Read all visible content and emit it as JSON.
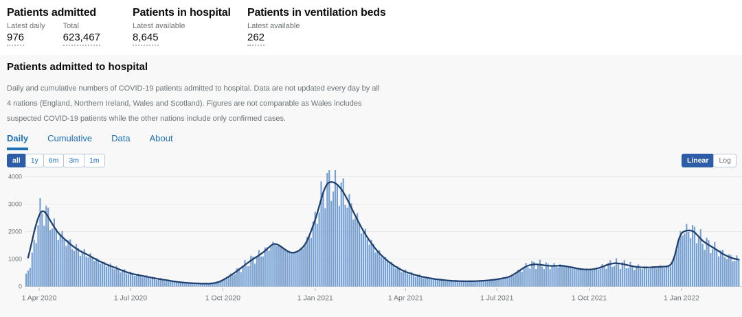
{
  "stats": [
    {
      "title": "Patients admitted",
      "metrics": [
        {
          "label": "Latest daily",
          "value": "976"
        },
        {
          "label": "Total",
          "value": "623,467"
        }
      ]
    },
    {
      "title": "Patients in hospital",
      "metrics": [
        {
          "label": "Latest available",
          "value": "8,645"
        }
      ]
    },
    {
      "title": "Patients in ventilation beds",
      "metrics": [
        {
          "label": "Latest available",
          "value": "262"
        }
      ]
    }
  ],
  "card": {
    "title": "Patients admitted to hospital",
    "description": "Daily and cumulative numbers of COVID-19 patients admitted to hospital. Data are not updated every day by all 4 nations (England, Northern Ireland, Wales and Scotland). Figures are not comparable as Wales includes suspected COVID-19 patients while the other nations include only confirmed cases.",
    "tabs": [
      {
        "label": "Daily",
        "active": true
      },
      {
        "label": "Cumulative",
        "active": false
      },
      {
        "label": "Data",
        "active": false
      },
      {
        "label": "About",
        "active": false
      }
    ],
    "range_buttons": [
      {
        "label": "all",
        "active": true
      },
      {
        "label": "1y",
        "active": false
      },
      {
        "label": "6m",
        "active": false
      },
      {
        "label": "3m",
        "active": false
      },
      {
        "label": "1m",
        "active": false
      }
    ],
    "scale_buttons": [
      {
        "label": "Linear",
        "active": true
      },
      {
        "label": "Log",
        "active": false
      }
    ]
  },
  "colors": {
    "accent_blue": "#1d70b8",
    "selected_button_bg": "#2d5da7",
    "bar_fill": "#6b99cf",
    "line_stroke": "#20406f",
    "panel_bg": "#f8f8f8",
    "grid_line": "#e8e8e8",
    "axis_line": "#d2d4d8",
    "tick_mark": "#b1b4b6",
    "axis_text": "#6b7276",
    "text_dark": "#0b0c0c",
    "text_gray": "#6b7276"
  },
  "chart_data": {
    "type": "bar+line",
    "title": "Patients admitted to hospital — daily",
    "legend": "none",
    "grid": "horizontal",
    "y_axis": {
      "ticks": [
        0,
        1000,
        2000,
        3000,
        4000
      ],
      "range": [
        0,
        4200
      ]
    },
    "x_axis": {
      "ticks": [
        {
          "day": 13,
          "label": "1 Apr 2020"
        },
        {
          "day": 104,
          "label": "1 Jul 2020"
        },
        {
          "day": 196,
          "label": "1 Oct 2020"
        },
        {
          "day": 288,
          "label": "1 Jan 2021"
        },
        {
          "day": 378,
          "label": "1 Apr 2021"
        },
        {
          "day": 469,
          "label": "1 Jul 2021"
        },
        {
          "day": 561,
          "label": "1 Oct 2021"
        },
        {
          "day": 653,
          "label": "1 Jan 2022"
        }
      ]
    },
    "days_total": 710,
    "bar_step_days": 2,
    "avg_line": [
      [
        2,
        1050
      ],
      [
        5,
        1500
      ],
      [
        9,
        2150
      ],
      [
        13,
        2620
      ],
      [
        16,
        2760
      ],
      [
        19,
        2715
      ],
      [
        23,
        2470
      ],
      [
        27,
        2220
      ],
      [
        31,
        1990
      ],
      [
        36,
        1800
      ],
      [
        41,
        1640
      ],
      [
        46,
        1480
      ],
      [
        51,
        1350
      ],
      [
        56,
        1250
      ],
      [
        61,
        1160
      ],
      [
        66,
        1060
      ],
      [
        71,
        960
      ],
      [
        76,
        870
      ],
      [
        81,
        790
      ],
      [
        86,
        720
      ],
      [
        91,
        650
      ],
      [
        96,
        580
      ],
      [
        101,
        510
      ],
      [
        106,
        460
      ],
      [
        111,
        420
      ],
      [
        116,
        385
      ],
      [
        121,
        350
      ],
      [
        126,
        315
      ],
      [
        131,
        280
      ],
      [
        136,
        250
      ],
      [
        141,
        225
      ],
      [
        146,
        190
      ],
      [
        151,
        165
      ],
      [
        156,
        145
      ],
      [
        161,
        130
      ],
      [
        166,
        118
      ],
      [
        171,
        110
      ],
      [
        176,
        105
      ],
      [
        181,
        103
      ],
      [
        186,
        110
      ],
      [
        191,
        150
      ],
      [
        196,
        230
      ],
      [
        200,
        320
      ],
      [
        205,
        430
      ],
      [
        210,
        560
      ],
      [
        215,
        700
      ],
      [
        220,
        840
      ],
      [
        226,
        1000
      ],
      [
        232,
        1130
      ],
      [
        238,
        1290
      ],
      [
        242,
        1430
      ],
      [
        245,
        1530
      ],
      [
        248,
        1560
      ],
      [
        252,
        1505
      ],
      [
        256,
        1400
      ],
      [
        260,
        1290
      ],
      [
        264,
        1225
      ],
      [
        268,
        1235
      ],
      [
        272,
        1310
      ],
      [
        276,
        1430
      ],
      [
        280,
        1660
      ],
      [
        284,
        2020
      ],
      [
        288,
        2420
      ],
      [
        292,
        2920
      ],
      [
        295,
        3320
      ],
      [
        298,
        3620
      ],
      [
        301,
        3790
      ],
      [
        305,
        3815
      ],
      [
        309,
        3750
      ],
      [
        313,
        3600
      ],
      [
        317,
        3380
      ],
      [
        321,
        3100
      ],
      [
        325,
        2800
      ],
      [
        329,
        2500
      ],
      [
        333,
        2220
      ],
      [
        337,
        1960
      ],
      [
        341,
        1730
      ],
      [
        345,
        1520
      ],
      [
        349,
        1330
      ],
      [
        353,
        1170
      ],
      [
        357,
        1030
      ],
      [
        361,
        905
      ],
      [
        365,
        800
      ],
      [
        369,
        705
      ],
      [
        373,
        620
      ],
      [
        377,
        550
      ],
      [
        381,
        495
      ],
      [
        385,
        448
      ],
      [
        389,
        405
      ],
      [
        394,
        360
      ],
      [
        399,
        322
      ],
      [
        404,
        288
      ],
      [
        410,
        258
      ],
      [
        416,
        232
      ],
      [
        422,
        212
      ],
      [
        428,
        200
      ],
      [
        434,
        192
      ],
      [
        440,
        190
      ],
      [
        446,
        194
      ],
      [
        452,
        202
      ],
      [
        458,
        216
      ],
      [
        464,
        236
      ],
      [
        470,
        266
      ],
      [
        475,
        300
      ],
      [
        480,
        330
      ],
      [
        484,
        400
      ],
      [
        488,
        490
      ],
      [
        492,
        590
      ],
      [
        496,
        690
      ],
      [
        500,
        760
      ],
      [
        504,
        800
      ],
      [
        508,
        808
      ],
      [
        512,
        795
      ],
      [
        516,
        772
      ],
      [
        520,
        755
      ],
      [
        524,
        748
      ],
      [
        528,
        752
      ],
      [
        532,
        760
      ],
      [
        536,
        748
      ],
      [
        540,
        720
      ],
      [
        545,
        690
      ],
      [
        549,
        655
      ],
      [
        553,
        632
      ],
      [
        557,
        620
      ],
      [
        561,
        618
      ],
      [
        565,
        628
      ],
      [
        569,
        655
      ],
      [
        573,
        705
      ],
      [
        577,
        762
      ],
      [
        581,
        812
      ],
      [
        585,
        842
      ],
      [
        589,
        848
      ],
      [
        593,
        828
      ],
      [
        597,
        795
      ],
      [
        601,
        762
      ],
      [
        605,
        732
      ],
      [
        609,
        708
      ],
      [
        613,
        695
      ],
      [
        617,
        690
      ],
      [
        621,
        694
      ],
      [
        625,
        702
      ],
      [
        629,
        712
      ],
      [
        633,
        720
      ],
      [
        637,
        724
      ],
      [
        640,
        738
      ],
      [
        643,
        820
      ],
      [
        646,
        1080
      ],
      [
        648,
        1400
      ],
      [
        650,
        1700
      ],
      [
        652,
        1880
      ],
      [
        654,
        1980
      ],
      [
        657,
        2030
      ],
      [
        661,
        2048
      ],
      [
        665,
        2010
      ],
      [
        668,
        1900
      ],
      [
        671,
        1780
      ],
      [
        674,
        1660
      ],
      [
        678,
        1560
      ],
      [
        682,
        1470
      ],
      [
        686,
        1380
      ],
      [
        690,
        1290
      ],
      [
        694,
        1190
      ],
      [
        698,
        1110
      ],
      [
        702,
        1050
      ],
      [
        706,
        1005
      ],
      [
        710,
        980
      ]
    ],
    "bar_lead_in": [
      [
        0,
        400
      ],
      [
        2,
        600
      ],
      [
        4,
        820
      ],
      [
        6,
        1100
      ],
      [
        8,
        1500
      ],
      [
        10,
        1950
      ],
      [
        12,
        2350
      ],
      [
        14,
        2650
      ]
    ]
  }
}
